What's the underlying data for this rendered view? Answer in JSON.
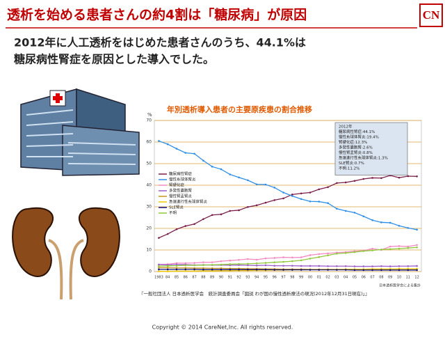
{
  "header": {
    "title": "透析を始める患者さんの約4割は「糖尿病」が原因",
    "logo": "CN",
    "subtitle_lines": [
      "2012年に人工透析をはじめた患者さんのうち、44.1%は",
      "糖尿病性腎症を原因とした導入でした。"
    ]
  },
  "chart_data": {
    "type": "line",
    "title": "年別透析導入患者の主要原疾患の割合推移",
    "y_unit": "%",
    "categories": [
      "1983",
      "84",
      "85",
      "86",
      "87",
      "88",
      "89",
      "90",
      "91",
      "92",
      "93",
      "94",
      "95",
      "96",
      "97",
      "98",
      "99",
      "00",
      "01",
      "02",
      "03",
      "04",
      "05",
      "06",
      "07",
      "08",
      "09",
      "10",
      "11",
      "12"
    ],
    "ylim": [
      0,
      70
    ],
    "yticks": [
      0,
      10,
      20,
      30,
      40,
      50,
      60,
      70
    ],
    "grid": true,
    "legend": "left",
    "series": [
      {
        "name": "糖尿病性腎症",
        "color": "#7a1f4a",
        "values": [
          15.6,
          17.4,
          19.6,
          21.1,
          22.0,
          24.3,
          26.2,
          26.5,
          28.1,
          28.4,
          29.9,
          30.7,
          31.9,
          33.1,
          33.9,
          35.7,
          36.2,
          36.6,
          38.1,
          39.1,
          41.0,
          41.3,
          42.0,
          42.9,
          43.4,
          43.3,
          44.5,
          43.5,
          44.2,
          44.1
        ]
      },
      {
        "name": "慢性糸球体腎炎",
        "color": "#2f8fe8",
        "values": [
          60.5,
          59.0,
          56.9,
          55.0,
          54.6,
          51.4,
          48.6,
          47.4,
          45.0,
          43.6,
          42.3,
          40.4,
          40.3,
          38.9,
          36.6,
          35.0,
          33.6,
          32.5,
          32.4,
          31.7,
          29.1,
          28.1,
          27.3,
          25.6,
          23.8,
          22.8,
          22.6,
          21.2,
          20.2,
          19.4
        ]
      },
      {
        "name": "腎硬化症",
        "color": "#f48cc4",
        "values": [
          3.3,
          3.4,
          3.9,
          3.9,
          4.0,
          4.3,
          4.3,
          4.8,
          5.1,
          5.4,
          5.8,
          5.5,
          6.1,
          6.3,
          6.6,
          6.5,
          6.6,
          7.6,
          8.1,
          8.4,
          8.8,
          9.0,
          9.4,
          9.7,
          10.6,
          10.0,
          11.6,
          11.8,
          11.6,
          12.3
        ]
      },
      {
        "name": "多発性嚢胞腎",
        "color": "#9a5fc8",
        "values": [
          3.2,
          3.1,
          3.3,
          3.2,
          3.0,
          3.1,
          3.0,
          3.0,
          2.9,
          3.0,
          2.9,
          2.8,
          2.9,
          2.7,
          2.7,
          2.7,
          2.6,
          2.6,
          2.6,
          2.5,
          2.5,
          2.5,
          2.4,
          2.4,
          2.4,
          2.5,
          2.4,
          2.5,
          2.5,
          2.6
        ]
      },
      {
        "name": "慢性腎盂腎炎",
        "color": "#c8961e",
        "values": [
          1.8,
          1.8,
          1.7,
          1.7,
          1.6,
          1.6,
          1.5,
          1.5,
          1.4,
          1.4,
          1.3,
          1.3,
          1.2,
          1.2,
          1.1,
          1.1,
          1.1,
          1.0,
          1.0,
          1.0,
          0.9,
          0.9,
          0.9,
          0.9,
          0.9,
          0.8,
          0.8,
          0.8,
          0.8,
          0.8
        ]
      },
      {
        "name": "急速進行性糸球体腎炎",
        "color": "#f0c800",
        "values": [
          0.1,
          0.1,
          0.2,
          0.2,
          0.2,
          0.3,
          0.3,
          0.4,
          0.4,
          0.5,
          0.5,
          0.6,
          0.6,
          0.7,
          0.7,
          0.8,
          0.8,
          0.9,
          0.9,
          1.0,
          1.0,
          1.1,
          1.1,
          1.1,
          1.2,
          1.2,
          1.2,
          1.3,
          1.3,
          1.3
        ]
      },
      {
        "name": "SLE腎炎",
        "color": "#10107a",
        "values": [
          1.0,
          1.0,
          1.0,
          1.0,
          1.0,
          0.9,
          0.9,
          0.9,
          0.9,
          0.9,
          0.9,
          0.9,
          0.9,
          0.8,
          0.8,
          0.8,
          0.8,
          0.8,
          0.8,
          0.8,
          0.8,
          0.8,
          0.7,
          0.7,
          0.7,
          0.7,
          0.7,
          0.7,
          0.7,
          0.7
        ]
      },
      {
        "name": "不明",
        "color": "#8fc83a",
        "values": [
          2.5,
          2.6,
          2.7,
          2.9,
          2.9,
          3.0,
          3.1,
          3.2,
          3.4,
          3.5,
          3.6,
          3.8,
          4.0,
          4.3,
          4.5,
          4.8,
          5.2,
          6.0,
          6.7,
          7.5,
          8.3,
          8.6,
          9.0,
          9.5,
          9.8,
          10.2,
          10.4,
          10.6,
          10.9,
          11.2
        ]
      }
    ],
    "annotation_lines": [
      "2012年",
      "糖尿病性腎症:44.1%",
      "慢性糸球体腎炎:19.4%",
      "腎硬化症:12.3%",
      "多発性嚢胞腎:2.6%",
      "慢性腎盂腎炎:0.8%",
      "急速進行性糸球体腎炎:1.3%",
      "SLE腎炎:0.7%",
      "不明:11.2%"
    ],
    "note": "日本透析医学会による集計",
    "source": "『一般社団法人 日本透析医学会　統計調査委員会「図説 わが国の慢性透析療法の現況(2012年12月31日現在)」』"
  },
  "footer": {
    "copyright": "Copyright © 2014 CareNet,Inc. All rights reserved."
  }
}
